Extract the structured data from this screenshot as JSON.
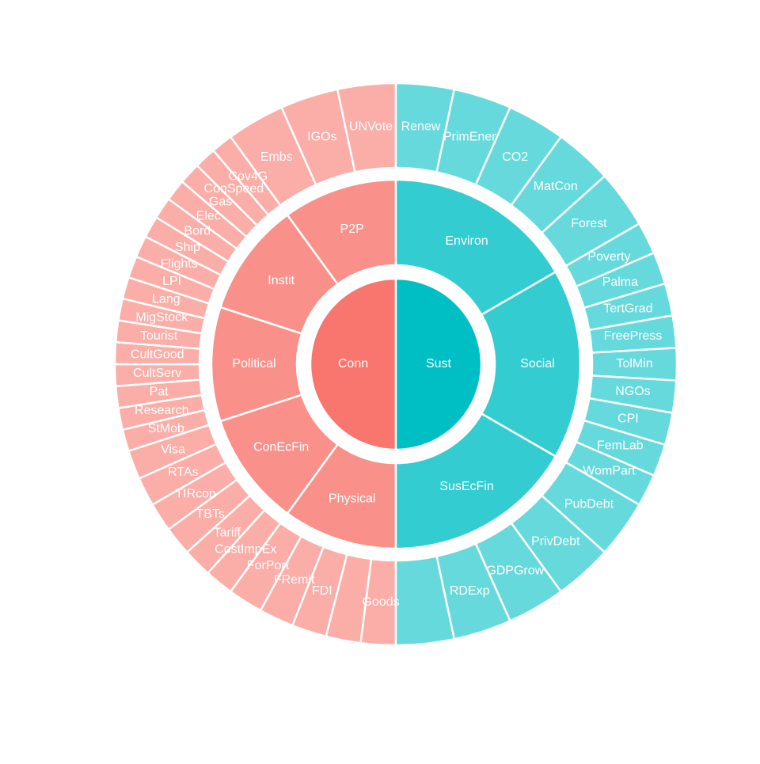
{
  "chart_data": {
    "type": "sunburst",
    "nodes": [
      {
        "name": "Conn",
        "color": "#F8766D",
        "weight": 1,
        "children": [
          {
            "name": "Physical",
            "weight": 1,
            "children": [
              {
                "name": "Goods",
                "weight": 1
              },
              {
                "name": null,
                "weight": 1
              },
              {
                "name": "FDI",
                "weight": 1
              },
              {
                "name": "FRemit",
                "weight": 1
              },
              {
                "name": "ForPort",
                "weight": 1
              }
            ]
          },
          {
            "name": "ConEcFin",
            "weight": 1,
            "children": [
              {
                "name": "CostImpEx",
                "weight": 1
              },
              {
                "name": "Tariff",
                "weight": 1
              },
              {
                "name": "TBTs",
                "weight": 1
              },
              {
                "name": "TIRcon",
                "weight": 1
              },
              {
                "name": "RTAs",
                "weight": 1
              },
              {
                "name": "Visa",
                "weight": 1
              }
            ]
          },
          {
            "name": "Political",
            "weight": 1,
            "children": [
              {
                "name": "StMob",
                "weight": 1
              },
              {
                "name": "Research",
                "weight": 1
              },
              {
                "name": "Pat",
                "weight": 1
              },
              {
                "name": "CultServ",
                "weight": 1
              },
              {
                "name": "CultGood",
                "weight": 1
              },
              {
                "name": "Tourist",
                "weight": 1
              },
              {
                "name": "MigStock",
                "weight": 1
              },
              {
                "name": "Lang",
                "weight": 1
              }
            ]
          },
          {
            "name": "Instit",
            "weight": 1,
            "children": [
              {
                "name": "LPI",
                "weight": 1
              },
              {
                "name": "Flights",
                "weight": 1
              },
              {
                "name": "Ship",
                "weight": 1
              },
              {
                "name": "Bord",
                "weight": 1
              },
              {
                "name": "Elec",
                "weight": 1
              },
              {
                "name": "Gas",
                "weight": 1
              },
              {
                "name": "ConSpeed",
                "weight": 1
              },
              {
                "name": "Cov4G",
                "weight": 1
              }
            ]
          },
          {
            "name": "P2P",
            "weight": 1,
            "children": [
              {
                "name": "Embs",
                "weight": 1
              },
              {
                "name": "IGOs",
                "weight": 1
              },
              {
                "name": "UNVote",
                "weight": 1
              }
            ]
          }
        ]
      },
      {
        "name": "Sust",
        "color": "#00BFC4",
        "weight": 1,
        "children": [
          {
            "name": "Environ",
            "weight": 1,
            "children": [
              {
                "name": "Renew",
                "weight": 1
              },
              {
                "name": "PrimEner",
                "weight": 1
              },
              {
                "name": "CO2",
                "weight": 1
              },
              {
                "name": "MatCon",
                "weight": 1
              },
              {
                "name": "Forest",
                "weight": 1
              }
            ]
          },
          {
            "name": "Social",
            "weight": 1,
            "children": [
              {
                "name": "Poverty",
                "weight": 1
              },
              {
                "name": "Palma",
                "weight": 1
              },
              {
                "name": "TertGrad",
                "weight": 1
              },
              {
                "name": "FreePress",
                "weight": 1
              },
              {
                "name": "TolMin",
                "weight": 1
              },
              {
                "name": "NGOs",
                "weight": 1
              },
              {
                "name": "CPI",
                "weight": 1
              },
              {
                "name": "FemLab",
                "weight": 1
              },
              {
                "name": "WomPart",
                "weight": 1
              }
            ]
          },
          {
            "name": "SusEcFin",
            "weight": 1,
            "children": [
              {
                "name": "PubDebt",
                "weight": 1
              },
              {
                "name": "PrivDebt",
                "weight": 1
              },
              {
                "name": "GDPGrow",
                "weight": 1
              },
              {
                "name": "RDExp",
                "weight": 1
              },
              {
                "name": null,
                "weight": 1
              }
            ]
          }
        ]
      }
    ]
  }
}
